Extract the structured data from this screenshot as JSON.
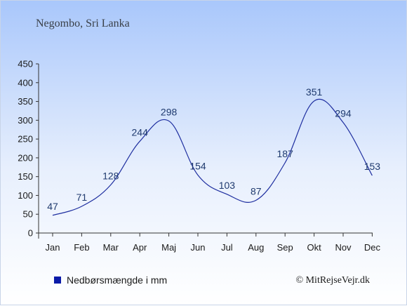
{
  "chart_data": {
    "type": "line",
    "title": "Negombo, Sri Lanka",
    "categories": [
      "Jan",
      "Feb",
      "Mar",
      "Apr",
      "Maj",
      "Jun",
      "Jul",
      "Aug",
      "Sep",
      "Okt",
      "Nov",
      "Dec"
    ],
    "series": [
      {
        "name": "Nedbørsmængde i mm",
        "values": [
          47,
          71,
          128,
          244,
          298,
          154,
          103,
          87,
          187,
          351,
          294,
          153
        ]
      }
    ],
    "ylim": [
      0,
      450
    ],
    "yticks": [
      0,
      50,
      100,
      150,
      200,
      250,
      300,
      350,
      400,
      450
    ],
    "grid": false,
    "legend_position": "bottom-left",
    "line_color": "#1f2fa0",
    "legend_color": "#0a1aa8"
  },
  "credit": "© MitRejseVejr.dk"
}
